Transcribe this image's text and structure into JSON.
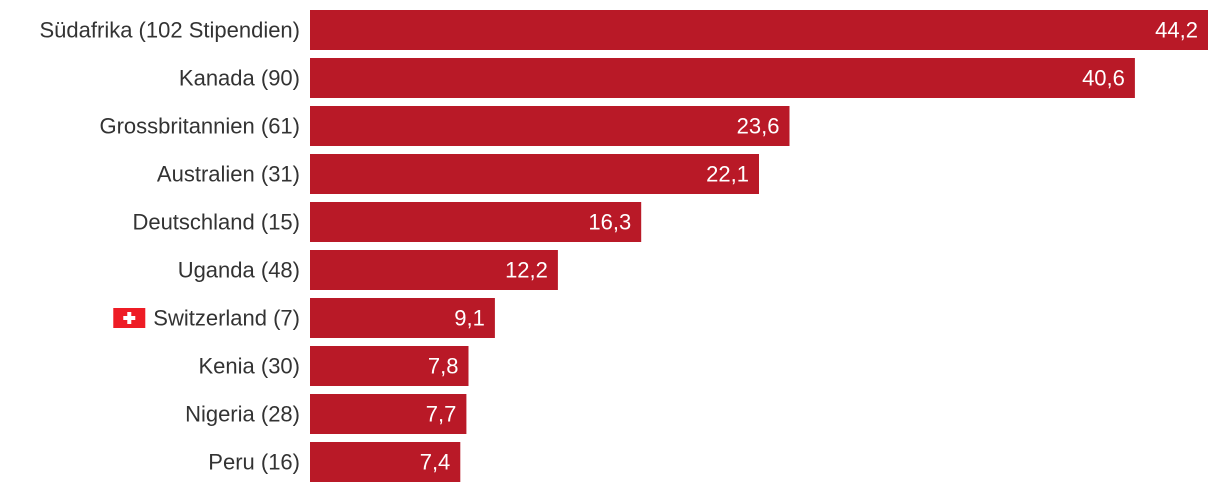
{
  "colors": {
    "bar": "#b91927",
    "label_text": "#333333",
    "value_text": "#ffffff",
    "flag_red": "#ee1c25",
    "flag_cross": "#ffffff"
  },
  "chart_data": {
    "type": "bar",
    "orientation": "horizontal",
    "categories": [
      "Südafrika (102 Stipendien)",
      "Kanada (90)",
      "Grossbritannien (61)",
      "Australien (31)",
      "Deutschland (15)",
      "Uganda (48)",
      "Switzerland (7)",
      "Kenia (30)",
      "Nigeria (28)",
      "Peru (16)"
    ],
    "values": [
      44.2,
      40.6,
      23.6,
      22.1,
      16.3,
      12.2,
      9.1,
      7.8,
      7.7,
      7.4
    ],
    "value_labels": [
      "44,2",
      "40,6",
      "23,6",
      "22,1",
      "16,3",
      "12,2",
      "9,1",
      "7,8",
      "7,7",
      "7,4"
    ],
    "highlight": {
      "category": "Switzerland (7)",
      "icon": "swiss-flag-icon"
    },
    "xlim": [
      0,
      44.2
    ],
    "grid": false,
    "legend": "none"
  }
}
